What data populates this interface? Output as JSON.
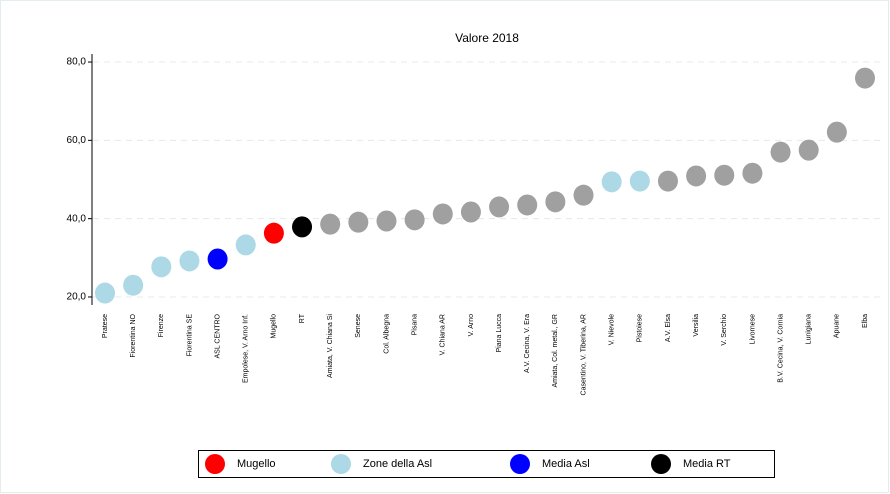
{
  "chart_data": {
    "type": "dot",
    "title": "Valore 2018",
    "categories": [
      "Pratese",
      "Fiorentina NO",
      "Firenze",
      "Fiorentina SE",
      "ASL CENTRO",
      "Empolese, V. Arno Inf.",
      "Mugello",
      "RT",
      "Amiata, V. Chiana Si",
      "Senese",
      "Col. Albegna",
      "Pisana",
      "V. Chiana AR",
      "V. Arno",
      "Piana Lucca",
      "A.V. Cecina, V. Era",
      "Amiata, Col. metal., GR",
      "Casentino, V. Tiberina, AR",
      "V. Nievole",
      "Pistoiese",
      "A.V. Elsa",
      "Versilia",
      "V. Serchio",
      "Livornese",
      "B.V. Cecina, V. Cornia",
      "Lunigiana",
      "Apuane",
      "Elba"
    ],
    "values": [
      21.0,
      23.0,
      27.7,
      29.2,
      29.7,
      33.3,
      36.3,
      37.9,
      38.6,
      39.1,
      39.4,
      39.7,
      41.2,
      41.7,
      43.0,
      43.5,
      44.3,
      46.0,
      49.4,
      49.6,
      49.6,
      50.9,
      51.1,
      51.6,
      57.0,
      57.5,
      62.1,
      75.9
    ],
    "colors": [
      "#add8e6",
      "#add8e6",
      "#add8e6",
      "#add8e6",
      "#0000ff",
      "#add8e6",
      "#ff0000",
      "#000000",
      "#a0a0a0",
      "#a0a0a0",
      "#a0a0a0",
      "#a0a0a0",
      "#a0a0a0",
      "#a0a0a0",
      "#a0a0a0",
      "#a0a0a0",
      "#a0a0a0",
      "#a0a0a0",
      "#add8e6",
      "#add8e6",
      "#a0a0a0",
      "#a0a0a0",
      "#a0a0a0",
      "#a0a0a0",
      "#a0a0a0",
      "#a0a0a0",
      "#a0a0a0",
      "#a0a0a0"
    ],
    "ylim": [
      18,
      82
    ],
    "yticks": [
      {
        "value": 20,
        "label": "20,0"
      },
      {
        "value": 40,
        "label": "40,0"
      },
      {
        "value": 60,
        "label": "60,0"
      },
      {
        "value": 80,
        "label": "80,0"
      }
    ],
    "grid": true,
    "legend": [
      {
        "name": "Mugello",
        "color": "#ff0000"
      },
      {
        "name": "Zone della Asl",
        "color": "#add8e6"
      },
      {
        "name": "Media Asl",
        "color": "#0000ff"
      },
      {
        "name": "Media RT",
        "color": "#000000"
      }
    ],
    "legend_position": "bottom"
  }
}
